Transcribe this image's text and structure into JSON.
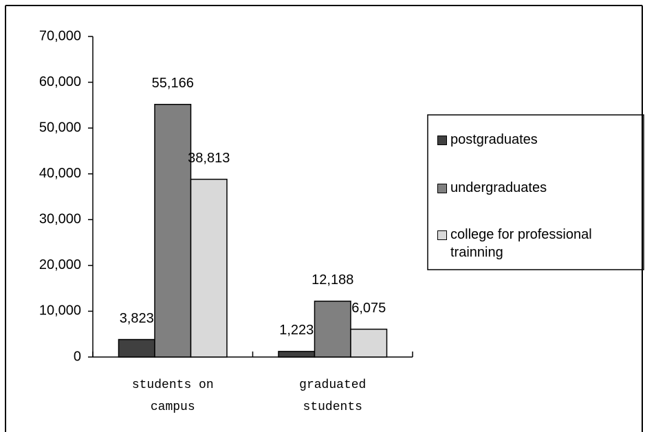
{
  "chart_data": {
    "type": "bar",
    "categories": [
      "students on campus",
      "graduated students"
    ],
    "series": [
      {
        "name": "postgraduates",
        "color": "#404040",
        "values": [
          3823,
          1223
        ],
        "value_labels": [
          "3,823",
          "1,223"
        ]
      },
      {
        "name": "undergraduates",
        "color": "#808080",
        "values": [
          55166,
          12188
        ],
        "value_labels": [
          "55,166",
          "12,188"
        ]
      },
      {
        "name": "college for professional trainning",
        "color": "#d9d9d9",
        "values": [
          38813,
          6075
        ],
        "value_labels": [
          "38,813",
          "6,075"
        ]
      }
    ],
    "ylim": [
      0,
      70000
    ],
    "yticks": [
      0,
      {
        "value": 10000,
        "label": "10,000"
      },
      {
        "value": 20000,
        "label": "20,000"
      },
      {
        "value": 30000,
        "label": "30,000"
      },
      {
        "value": 40000,
        "label": "40,000"
      },
      {
        "value": 50000,
        "label": "50,000"
      },
      {
        "value": 60000,
        "label": "60,000"
      },
      {
        "value": 70000,
        "label": "70,000"
      }
    ],
    "grid": false,
    "legend": "right"
  }
}
